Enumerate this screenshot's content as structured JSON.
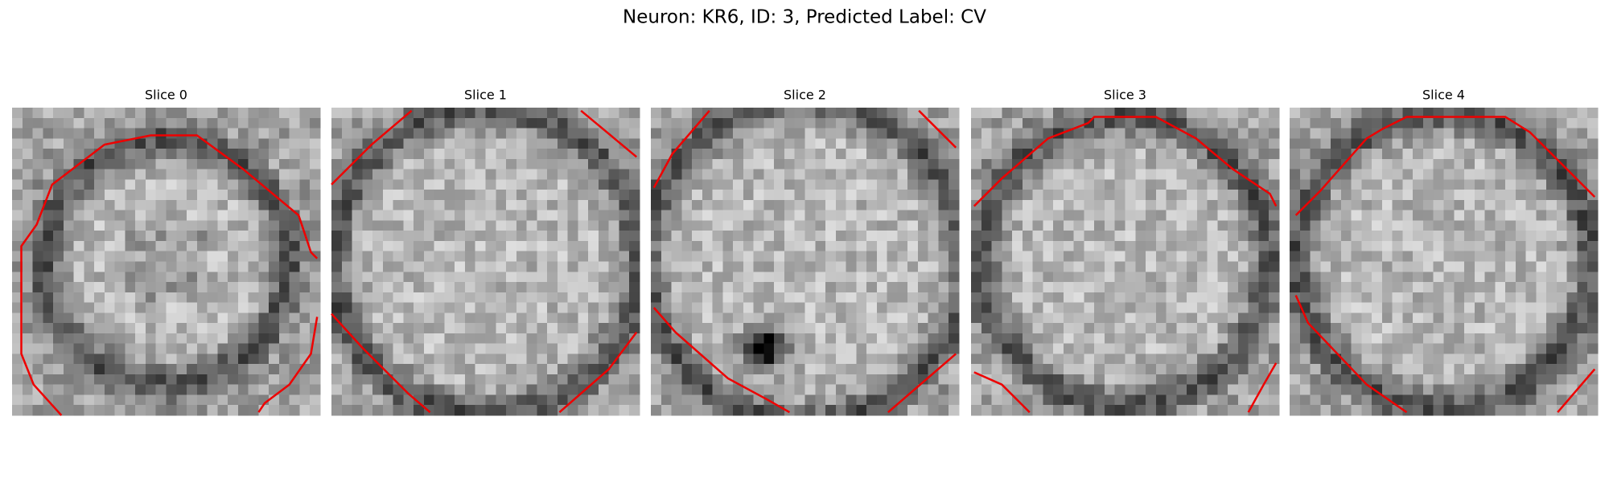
{
  "title": "Neuron: KR6, ID: 3, Predicted Label: CV",
  "panels": [
    {
      "title": "Slice 0"
    },
    {
      "title": "Slice 1"
    },
    {
      "title": "Slice 2"
    },
    {
      "title": "Slice 3"
    },
    {
      "title": "Slice 4"
    }
  ]
}
